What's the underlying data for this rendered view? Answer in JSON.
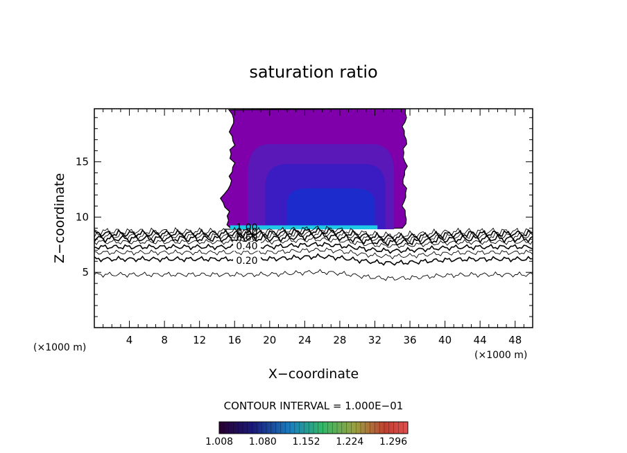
{
  "chart_data": {
    "type": "contour",
    "title": "saturation ratio",
    "xlabel": "X−coordinate",
    "ylabel": "Z−coordinate",
    "x_unit_left": "(×1000 m)",
    "x_unit_right": "(×1000 m)",
    "xlim": [
      0,
      50
    ],
    "ylim": [
      0,
      19.8
    ],
    "x_ticks": [
      4,
      8,
      12,
      16,
      20,
      24,
      28,
      32,
      36,
      40,
      44,
      48
    ],
    "y_ticks": [
      5,
      10,
      15
    ],
    "grid": false,
    "contour_interval_text": "CONTOUR INTERVAL = 1.000E−01",
    "contour_labels": [
      {
        "text": "0.20",
        "level": 0.2,
        "x": 17.4,
        "z": 5.9
      },
      {
        "text": "0.40",
        "level": 0.4,
        "x": 17.4,
        "z": 7.2
      },
      {
        "text": "0.60",
        "level": 0.6,
        "x": 17.4,
        "z": 8.0
      },
      {
        "text": "0.80",
        "level": 0.8,
        "x": 17.4,
        "z": 8.5
      },
      {
        "text": "1.00",
        "level": 1.0,
        "x": 17.4,
        "z": 8.9
      }
    ],
    "contour_lines": [
      {
        "level": 0.1,
        "z": 4.8
      },
      {
        "level": 0.2,
        "z": 6.2
      },
      {
        "level": 0.3,
        "z": 6.8
      },
      {
        "level": 0.4,
        "z": 7.3
      },
      {
        "level": 0.5,
        "z": 7.75
      },
      {
        "level": 0.6,
        "z": 8.05
      },
      {
        "level": 0.7,
        "z": 8.3
      },
      {
        "level": 0.8,
        "z": 8.5
      },
      {
        "level": 0.9,
        "z": 8.7
      }
    ],
    "supersaturated_region": {
      "x_range": [
        14.5,
        35.5
      ],
      "z_range": [
        8.9,
        19.8
      ]
    },
    "colorbar": {
      "tick_labels": [
        "1.008",
        "1.080",
        "1.152",
        "1.224",
        "1.296"
      ],
      "min": 1.008,
      "max": 1.32
    },
    "colors": {
      "fill_outer": "#7f00aa",
      "fill_mid": "#5a18b8",
      "fill_inner": "#3a1cc2",
      "fill_core": "#1c2ccc",
      "band_highlight": "#1ec9e6"
    }
  }
}
